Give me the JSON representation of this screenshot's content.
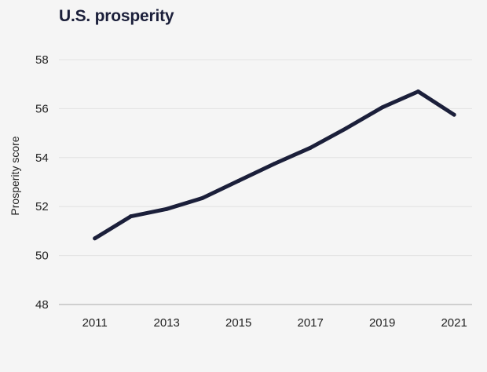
{
  "chart_data": {
    "type": "line",
    "title": "U.S. prosperity",
    "xlabel": "",
    "ylabel": "Prosperity score",
    "xlim": [
      2010,
      2021.5
    ],
    "ylim": [
      48,
      58
    ],
    "x_ticks": [
      2011,
      2013,
      2015,
      2017,
      2019,
      2021
    ],
    "y_ticks": [
      48,
      50,
      52,
      54,
      56,
      58
    ],
    "grid": true,
    "legend": "none",
    "series": [
      {
        "x": [
          2011,
          2012,
          2013,
          2014,
          2015,
          2016,
          2017,
          2018,
          2019,
          2020,
          2021
        ],
        "values": [
          50.7,
          51.6,
          51.9,
          52.35,
          53.05,
          53.75,
          54.4,
          55.2,
          56.05,
          56.7,
          55.75
        ]
      }
    ],
    "colors": {
      "line": "#1b1f3a",
      "grid": "#e2e2e2",
      "axis": "#cfcfcf",
      "background": "#f5f5f5"
    }
  }
}
